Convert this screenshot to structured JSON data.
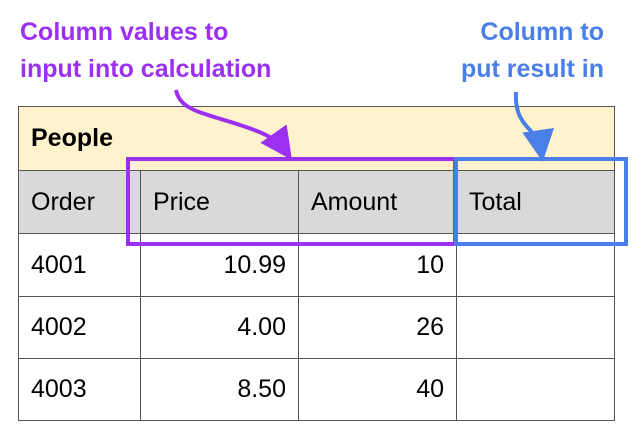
{
  "annotations": [
    {
      "lines": [
        "Column values to",
        "input into calculation"
      ],
      "color": "#9b30f0"
    },
    {
      "lines": [
        "Column to",
        "put result in"
      ],
      "color": "#4a7ee8"
    }
  ],
  "table": {
    "title": "People",
    "headers": [
      "Order",
      "Price",
      "Amount",
      "Total"
    ],
    "rows": [
      [
        "4001",
        "10.99",
        "10"
      ],
      [
        "4002",
        "4.00",
        "26"
      ],
      [
        "4003",
        "8.50",
        "40"
      ]
    ]
  }
}
